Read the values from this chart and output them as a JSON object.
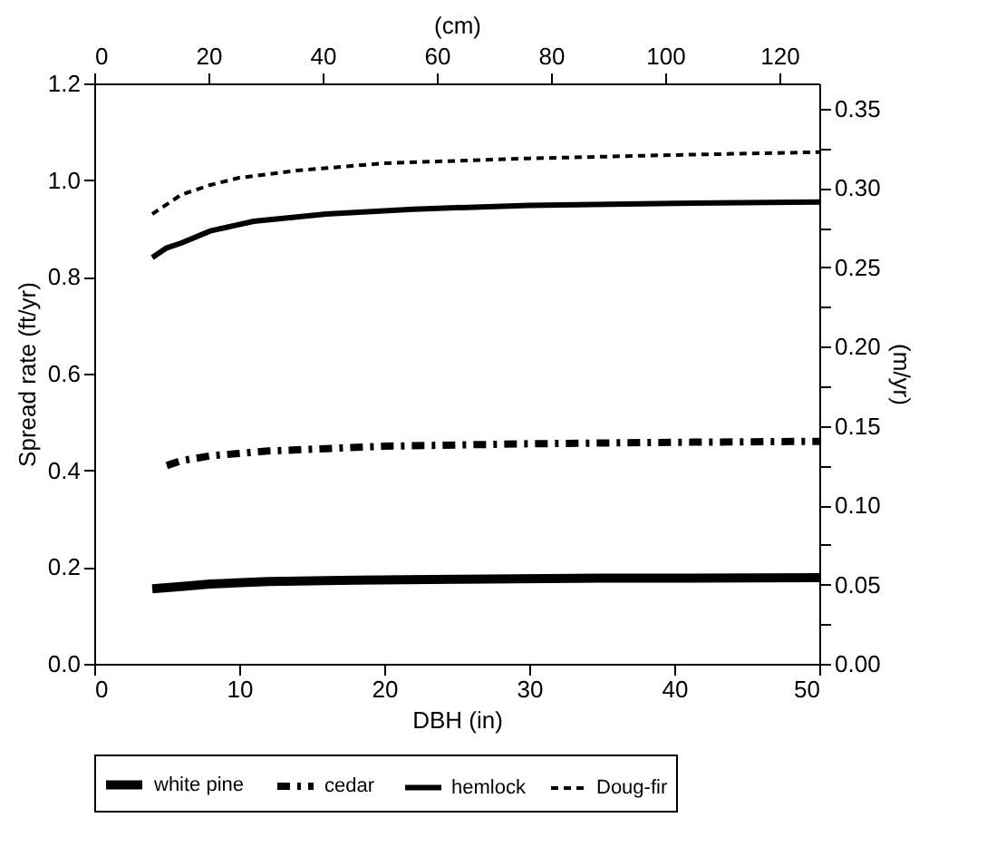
{
  "chart_data": {
    "type": "line",
    "xlabel": "DBH (in)",
    "ylabel": "Spread rate (ft/yr)",
    "x2label": "(cm)",
    "y2label": "(m/yr)",
    "xlim": [
      0,
      50
    ],
    "xticks": [
      0,
      10,
      20,
      30,
      40,
      50
    ],
    "ylim": [
      0,
      1.2
    ],
    "yticks": [
      {
        "value": 0,
        "label": "0.0"
      },
      0.2,
      0.4,
      0.6,
      0.8,
      {
        "value": 1,
        "label": "1.0"
      },
      1.2
    ],
    "x2lim": [
      0,
      127
    ],
    "x2ticks": [
      0,
      20,
      40,
      60,
      80,
      100,
      120
    ],
    "y2lim": [
      0,
      0.366
    ],
    "y2ticks": [
      {
        "value": 0,
        "label": "0.00"
      },
      {
        "value": 0.025,
        "label": null
      },
      {
        "value": 0.05,
        "label": "0.05"
      },
      {
        "value": 0.075,
        "label": null
      },
      {
        "value": 0.1,
        "label": "0.10"
      },
      {
        "value": 0.125,
        "label": null
      },
      {
        "value": 0.15,
        "label": "0.15"
      },
      {
        "value": 0.175,
        "label": null
      },
      {
        "value": 0.2,
        "label": "0.20"
      },
      {
        "value": 0.225,
        "label": null
      },
      {
        "value": 0.25,
        "label": "0.25"
      },
      {
        "value": 0.275,
        "label": null
      },
      {
        "value": 0.3,
        "label": "0.30"
      },
      {
        "value": 0.325,
        "label": null
      },
      {
        "value": 0.35,
        "label": "0.35"
      }
    ],
    "grid": false,
    "legend": "bottom",
    "series": [
      {
        "name": "white pine",
        "color": "#000000",
        "line_style": "solid",
        "x": [
          4,
          6,
          8,
          12,
          18,
          25,
          35,
          50
        ],
        "values": [
          0.155,
          0.16,
          0.165,
          0.17,
          0.173,
          0.175,
          0.177,
          0.178
        ]
      },
      {
        "name": "cedar",
        "color": "#000000",
        "line_style": "dashdot",
        "x": [
          5,
          6,
          8,
          10,
          12,
          16,
          20,
          30,
          40,
          50
        ],
        "values": [
          0.41,
          0.42,
          0.43,
          0.435,
          0.44,
          0.445,
          0.45,
          0.455,
          0.458,
          0.46
        ]
      },
      {
        "name": "hemlock",
        "color": "#000000",
        "line_style": "solid",
        "x": [
          4,
          5,
          6,
          8,
          11,
          16,
          22,
          30,
          40,
          50
        ],
        "values": [
          0.84,
          0.86,
          0.87,
          0.895,
          0.915,
          0.93,
          0.94,
          0.948,
          0.952,
          0.955
        ]
      },
      {
        "name": "Doug-fir",
        "color": "#000000",
        "line_style": "dashed",
        "x": [
          4,
          5,
          6,
          8,
          10,
          14,
          20,
          30,
          40,
          50
        ],
        "values": [
          0.93,
          0.95,
          0.97,
          0.99,
          1.005,
          1.02,
          1.035,
          1.045,
          1.052,
          1.058
        ]
      }
    ]
  }
}
